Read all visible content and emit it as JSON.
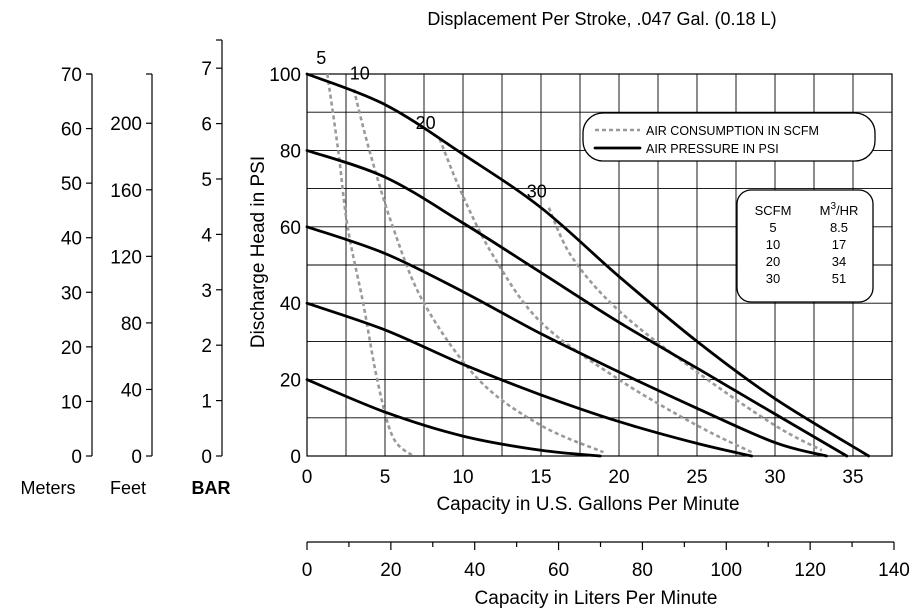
{
  "chart_data": {
    "type": "line",
    "title": "Displacement Per Stroke, .047 Gal. (0.18 L)",
    "xlabel": "Capacity in U.S. Gallons Per Minute",
    "ylabel": "Discharge Head in PSI",
    "xlim": [
      0,
      37.5
    ],
    "ylim": [
      0,
      100
    ],
    "x_ticks": [
      "0",
      "5",
      "10",
      "15",
      "20",
      "25",
      "30",
      "35"
    ],
    "y_ticks": [
      "0",
      "20",
      "40",
      "60",
      "80",
      "100"
    ],
    "grid": true,
    "legend": {
      "placement": "top-right",
      "entries": [
        {
          "label": "AIR CONSUMPTION IN SCFM",
          "style": "dashed",
          "color": "#9a9a9a"
        },
        {
          "label": "AIR PRESSURE IN PSI",
          "style": "solid",
          "color": "#000000"
        }
      ]
    },
    "series": [
      {
        "kind": "pressure",
        "points": [
          [
            0,
            20
          ],
          [
            5,
            11.5
          ],
          [
            10,
            5.2
          ],
          [
            15,
            1.5
          ],
          [
            18.8,
            0
          ]
        ]
      },
      {
        "kind": "pressure",
        "points": [
          [
            0,
            40
          ],
          [
            5,
            33
          ],
          [
            10,
            24
          ],
          [
            15,
            16
          ],
          [
            20,
            9
          ],
          [
            25,
            3.3
          ],
          [
            28.5,
            0
          ]
        ]
      },
      {
        "kind": "pressure",
        "points": [
          [
            0,
            60
          ],
          [
            5,
            53
          ],
          [
            10,
            43
          ],
          [
            15,
            32
          ],
          [
            20,
            22
          ],
          [
            25,
            12.5
          ],
          [
            30,
            3.5
          ],
          [
            33.3,
            0
          ]
        ]
      },
      {
        "kind": "pressure",
        "points": [
          [
            0,
            80
          ],
          [
            5,
            73
          ],
          [
            10,
            61
          ],
          [
            15,
            48
          ],
          [
            20,
            35
          ],
          [
            25,
            23
          ],
          [
            30,
            11
          ],
          [
            34.6,
            0
          ]
        ]
      },
      {
        "kind": "pressure",
        "points": [
          [
            0,
            100
          ],
          [
            5,
            92
          ],
          [
            10,
            79
          ],
          [
            15,
            65
          ],
          [
            20,
            47
          ],
          [
            25,
            30
          ],
          [
            30,
            15
          ],
          [
            36,
            0
          ]
        ]
      },
      {
        "name": "5",
        "kind": "air",
        "points": [
          [
            1.3,
            100
          ],
          [
            2,
            80
          ],
          [
            2.6,
            60
          ],
          [
            3.6,
            40
          ],
          [
            4.5,
            20
          ],
          [
            5.5,
            5
          ],
          [
            6.8,
            0
          ]
        ]
      },
      {
        "name": "10",
        "kind": "air",
        "points": [
          [
            3,
            96
          ],
          [
            4,
            80
          ],
          [
            5.5,
            60
          ],
          [
            7.5,
            40
          ],
          [
            11,
            20
          ],
          [
            15,
            8
          ],
          [
            19,
            1
          ]
        ]
      },
      {
        "name": "20",
        "kind": "air",
        "points": [
          [
            8.5,
            83
          ],
          [
            10,
            68
          ],
          [
            12,
            52
          ],
          [
            15,
            35
          ],
          [
            20,
            20
          ],
          [
            25,
            8
          ],
          [
            28.5,
            1
          ]
        ]
      },
      {
        "name": "30",
        "kind": "air",
        "points": [
          [
            15.5,
            65
          ],
          [
            17,
            52
          ],
          [
            20,
            38
          ],
          [
            25,
            22
          ],
          [
            30,
            8
          ],
          [
            33,
            1.5
          ]
        ]
      }
    ],
    "secondary_scales": {
      "meters": {
        "label": "Meters",
        "ticks": [
          "0",
          "10",
          "20",
          "30",
          "40",
          "50",
          "60",
          "70"
        ]
      },
      "feet": {
        "label": "Feet",
        "ticks": [
          "0",
          "40",
          "80",
          "120",
          "160",
          "200"
        ]
      },
      "bar": {
        "label": "BAR",
        "ticks": [
          "0",
          "1",
          "2",
          "3",
          "4",
          "5",
          "6",
          "7"
        ]
      },
      "liters": {
        "label": "Capacity in Liters Per Minute",
        "ticks": [
          "0",
          "20",
          "40",
          "60",
          "80",
          "100",
          "120",
          "140"
        ]
      }
    },
    "conversion_table": {
      "headers": [
        "SCFM",
        "M3/HR"
      ],
      "rows": [
        [
          "5",
          "8.5"
        ],
        [
          "10",
          "17"
        ],
        [
          "20",
          "34"
        ],
        [
          "30",
          "51"
        ]
      ]
    }
  }
}
